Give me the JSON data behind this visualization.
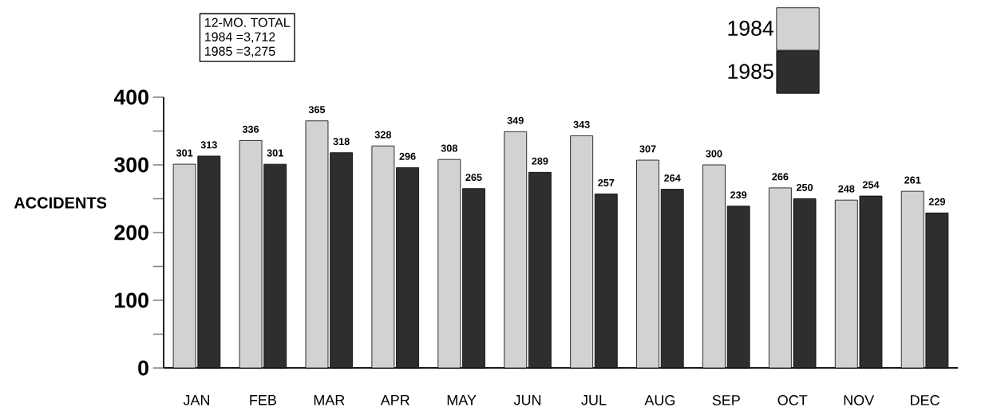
{
  "chart_data": {
    "type": "bar",
    "ylabel": "ACCIDENTS",
    "categories": [
      "JAN",
      "FEB",
      "MAR",
      "APR",
      "MAY",
      "JUN",
      "JUL",
      "AUG",
      "SEP",
      "OCT",
      "NOV",
      "DEC"
    ],
    "series": [
      {
        "name": "1984",
        "color": "#d2d2d2",
        "values": [
          301,
          336,
          365,
          328,
          308,
          349,
          343,
          307,
          300,
          266,
          248,
          261
        ]
      },
      {
        "name": "1985",
        "color": "#2e2e2e",
        "values": [
          313,
          301,
          318,
          296,
          265,
          289,
          257,
          264,
          239,
          250,
          254,
          229
        ]
      }
    ],
    "ylim": [
      0,
      400
    ],
    "yticks": [
      0,
      {
        "value": 50,
        "label": null
      },
      100,
      {
        "value": 150,
        "label": null
      },
      200,
      {
        "value": 250,
        "label": null
      },
      300,
      {
        "value": 350,
        "label": null
      },
      400
    ],
    "data_labels": true,
    "legend": "top right",
    "annotations": [
      "12-MO. TOTAL",
      "1984 =3,712",
      "1985 =3,275"
    ]
  }
}
